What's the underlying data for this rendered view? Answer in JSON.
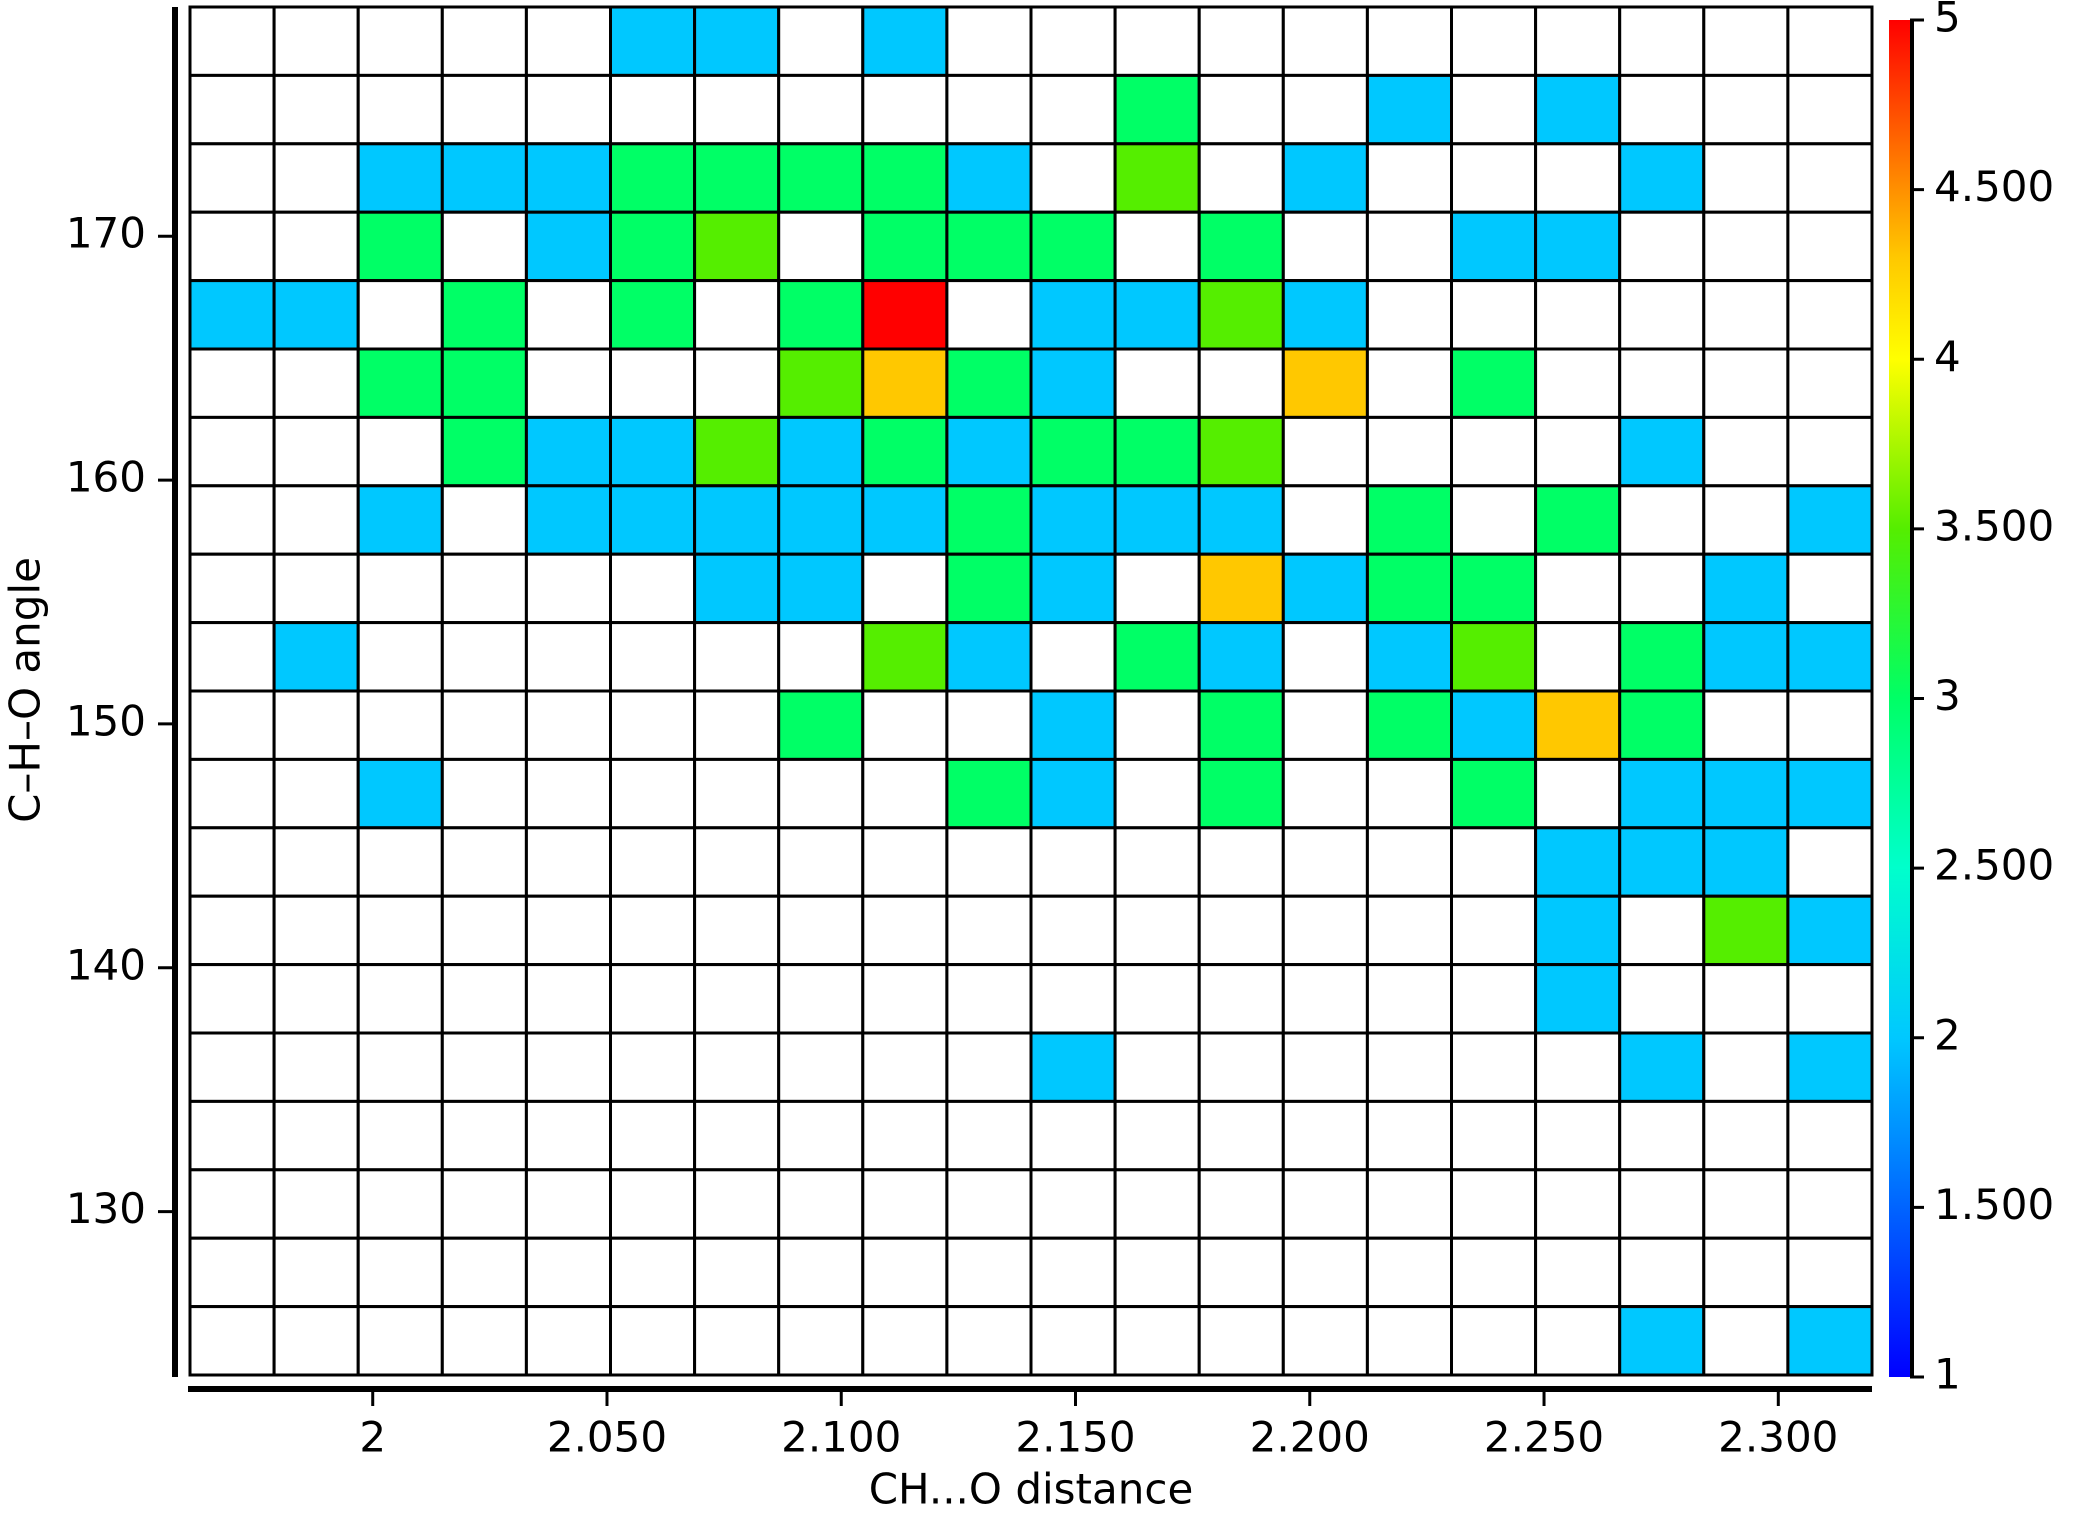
{
  "chart_data": {
    "type": "heatmap",
    "x_label": "CH...O distance",
    "y_label": "C–H–O angle",
    "xlim": [
      1.961,
      2.32
    ],
    "ylim": [
      123.3,
      179.4
    ],
    "xticks": [
      2,
      {
        "value": 2.05,
        "label": "2.050"
      },
      {
        "value": 2.1,
        "label": "2.100"
      },
      {
        "value": 2.15,
        "label": "2.150"
      },
      {
        "value": 2.2,
        "label": "2.200"
      },
      {
        "value": 2.25,
        "label": "2.250"
      },
      {
        "value": 2.3,
        "label": "2.300"
      }
    ],
    "yticks": [
      130,
      140,
      150,
      160,
      170
    ],
    "clim": [
      1,
      5
    ],
    "cticks": [
      1,
      {
        "value": 1.5,
        "label": "1.500"
      },
      2,
      {
        "value": 2.5,
        "label": "2.500"
      },
      3,
      {
        "value": 3.5,
        "label": "3.500"
      },
      4,
      {
        "value": 4.5,
        "label": "4.500"
      },
      5
    ],
    "colormap": [
      [
        1,
        "#0000ff"
      ],
      [
        1.5,
        "#0064ff"
      ],
      [
        2,
        "#00c8ff"
      ],
      [
        2.5,
        "#00ffcc"
      ],
      [
        3,
        "#00ff66"
      ],
      [
        3.5,
        "#55ee00"
      ],
      [
        4,
        "#ffff00"
      ],
      [
        4.3,
        "#ffc800"
      ],
      [
        4.5,
        "#ff9000"
      ],
      [
        5,
        "#ff0000"
      ]
    ],
    "z": [
      [
        null,
        null,
        null,
        null,
        null,
        2,
        2,
        null,
        2,
        null,
        null,
        null,
        null,
        null,
        null,
        null,
        null,
        null,
        null,
        null
      ],
      [
        null,
        null,
        null,
        null,
        null,
        null,
        null,
        null,
        null,
        null,
        null,
        3,
        null,
        null,
        2,
        null,
        2,
        null,
        null,
        null
      ],
      [
        null,
        null,
        2,
        2,
        2,
        3,
        3,
        3,
        3,
        2,
        null,
        3.5,
        null,
        2,
        null,
        null,
        null,
        2,
        null,
        null
      ],
      [
        null,
        null,
        3,
        null,
        2,
        3,
        3.5,
        null,
        3,
        3,
        3,
        null,
        3,
        null,
        null,
        2,
        2,
        null,
        null,
        null
      ],
      [
        2,
        2,
        null,
        3,
        null,
        3,
        null,
        3,
        5,
        null,
        2,
        2,
        3.5,
        2,
        null,
        null,
        null,
        null,
        null,
        null
      ],
      [
        null,
        null,
        3,
        3,
        null,
        null,
        null,
        3.5,
        4.3,
        3,
        2,
        null,
        null,
        4.3,
        null,
        3,
        null,
        null,
        null,
        null
      ],
      [
        null,
        null,
        null,
        3,
        2,
        2,
        3.5,
        2,
        3,
        2,
        3,
        3,
        3.5,
        null,
        null,
        null,
        null,
        2,
        null,
        null
      ],
      [
        null,
        null,
        2,
        null,
        2,
        2,
        2,
        2,
        2,
        3,
        2,
        2,
        2,
        null,
        3,
        null,
        3,
        null,
        null,
        2
      ],
      [
        null,
        null,
        null,
        null,
        null,
        null,
        2,
        2,
        null,
        3,
        2,
        null,
        4.3,
        2,
        3,
        3,
        null,
        null,
        2,
        null
      ],
      [
        null,
        2,
        null,
        null,
        null,
        null,
        null,
        null,
        3.5,
        2,
        null,
        3,
        2,
        null,
        2,
        3.5,
        null,
        3,
        2,
        2
      ],
      [
        null,
        null,
        null,
        null,
        null,
        null,
        null,
        3,
        null,
        null,
        2,
        null,
        3,
        null,
        3,
        2,
        4.3,
        3,
        null,
        null
      ],
      [
        null,
        null,
        2,
        null,
        null,
        null,
        null,
        null,
        null,
        3,
        2,
        null,
        3,
        null,
        null,
        3,
        null,
        2,
        2,
        2
      ],
      [
        null,
        null,
        null,
        null,
        null,
        null,
        null,
        null,
        null,
        null,
        null,
        null,
        null,
        null,
        null,
        null,
        2,
        2,
        2,
        null
      ],
      [
        null,
        null,
        null,
        null,
        null,
        null,
        null,
        null,
        null,
        null,
        null,
        null,
        null,
        null,
        null,
        null,
        2,
        null,
        3.5,
        2
      ],
      [
        null,
        null,
        null,
        null,
        null,
        null,
        null,
        null,
        null,
        null,
        null,
        null,
        null,
        null,
        null,
        null,
        2,
        null,
        null,
        null
      ],
      [
        null,
        null,
        null,
        null,
        null,
        null,
        null,
        null,
        null,
        null,
        2,
        null,
        null,
        null,
        null,
        null,
        null,
        2,
        null,
        2
      ],
      [
        null,
        null,
        null,
        null,
        null,
        null,
        null,
        null,
        null,
        null,
        null,
        null,
        null,
        null,
        null,
        null,
        null,
        null,
        null,
        null
      ],
      [
        null,
        null,
        null,
        null,
        null,
        null,
        null,
        null,
        null,
        null,
        null,
        null,
        null,
        null,
        null,
        null,
        null,
        null,
        null,
        null
      ],
      [
        null,
        null,
        null,
        null,
        null,
        null,
        null,
        null,
        null,
        null,
        null,
        null,
        null,
        null,
        null,
        null,
        null,
        null,
        null,
        null
      ],
      [
        null,
        null,
        null,
        null,
        null,
        null,
        null,
        null,
        null,
        null,
        null,
        null,
        null,
        null,
        null,
        null,
        null,
        2,
        null,
        2
      ]
    ]
  }
}
